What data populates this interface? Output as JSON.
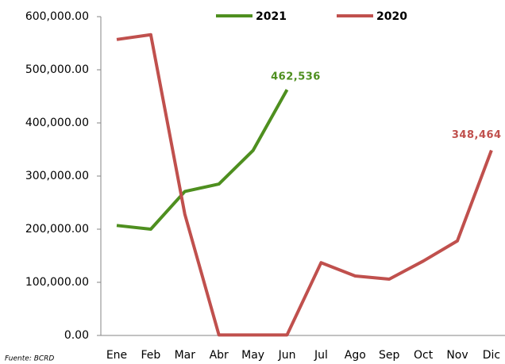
{
  "chart_data": {
    "type": "line",
    "categories": [
      "Ene",
      "Feb",
      "Mar",
      "Abr",
      "May",
      "Jun",
      "Jul",
      "Ago",
      "Sep",
      "Oct",
      "Nov",
      "Dic"
    ],
    "series": [
      {
        "name": "2021",
        "color": "#4e8f1f",
        "values": [
          207000,
          200000,
          271000,
          285000,
          348000,
          462536,
          null,
          null,
          null,
          null,
          null,
          null
        ],
        "value_labels": [
          null,
          null,
          null,
          null,
          null,
          "462,536",
          null,
          null,
          null,
          null,
          null,
          null
        ]
      },
      {
        "name": "2020",
        "color": "#c0504d",
        "values": [
          557000,
          566000,
          228000,
          1000,
          1000,
          1000,
          137000,
          112000,
          106000,
          140000,
          178000,
          348464
        ],
        "value_labels": [
          null,
          null,
          null,
          null,
          null,
          null,
          null,
          null,
          null,
          null,
          null,
          "348,464"
        ]
      }
    ],
    "ylim": [
      0,
      600000
    ],
    "yticks": [
      {
        "value": 0,
        "label": "0.00"
      },
      {
        "value": 100000,
        "label": "100,000.00"
      },
      {
        "value": 200000,
        "label": "200,000.00"
      },
      {
        "value": 300000,
        "label": "300,000.00"
      },
      {
        "value": 400000,
        "label": "400,000.00"
      },
      {
        "value": 500000,
        "label": "500,000.00"
      },
      {
        "value": 600000,
        "label": "600,000.00"
      }
    ],
    "grid": false,
    "legend": "top",
    "source": "Fuente: BCRD"
  }
}
